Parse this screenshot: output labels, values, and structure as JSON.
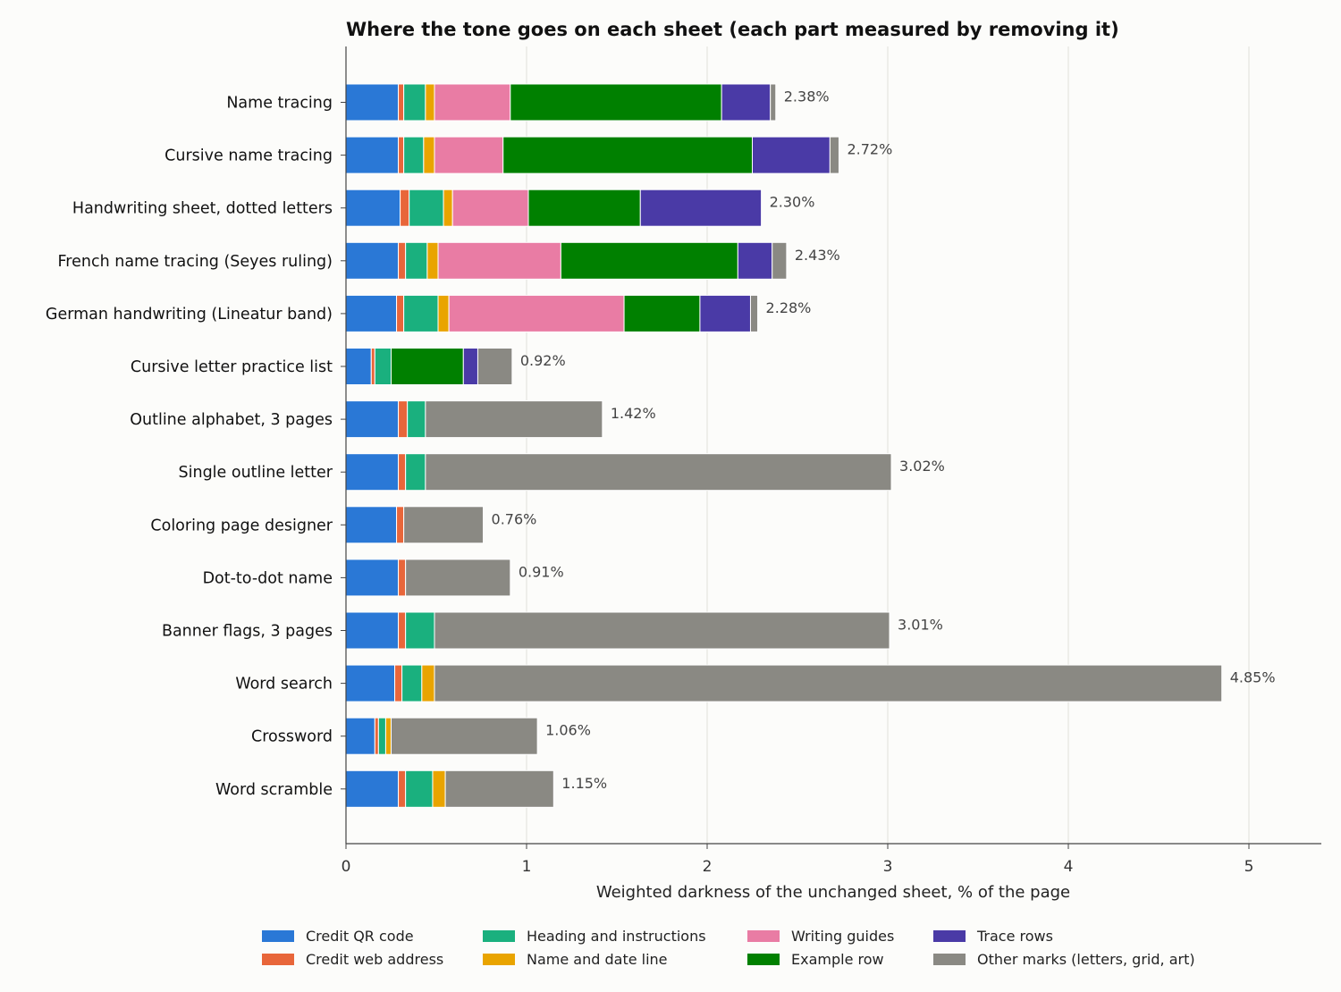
{
  "chart_data": {
    "type": "bar",
    "orientation": "horizontal",
    "stacked": true,
    "title": "Where the tone goes on each sheet (each part measured by removing it)",
    "xlabel": "Weighted darkness of the unchanged sheet, % of the page",
    "ylabel": "",
    "xlim": [
      0,
      5.4
    ],
    "xticks": [
      "0",
      "1",
      "2",
      "3",
      "4",
      "5"
    ],
    "grid": "vertical",
    "legend_position": "bottom",
    "categories": [
      "Name tracing",
      "Cursive name tracing",
      "Handwriting sheet, dotted letters",
      "French name tracing (Seyes ruling)",
      "German handwriting (Lineatur band)",
      "Cursive letter practice list",
      "Outline alphabet, 3 pages",
      "Single outline letter",
      "Coloring page designer",
      "Dot-to-dot name",
      "Banner flags, 3 pages",
      "Word search",
      "Crossword",
      "Word scramble"
    ],
    "totals": [
      "2.38%",
      "2.72%",
      "2.30%",
      "2.43%",
      "2.28%",
      "0.92%",
      "1.42%",
      "3.02%",
      "0.76%",
      "0.91%",
      "3.01%",
      "4.85%",
      "1.06%",
      "1.15%"
    ],
    "series": [
      {
        "name": "Credit QR code",
        "color": "#2a78d6",
        "values": [
          0.29,
          0.29,
          0.3,
          0.29,
          0.28,
          0.14,
          0.29,
          0.29,
          0.28,
          0.29,
          0.29,
          0.27,
          0.16,
          0.29
        ]
      },
      {
        "name": "Credit web address",
        "color": "#e8663a",
        "values": [
          0.03,
          0.03,
          0.05,
          0.04,
          0.04,
          0.02,
          0.05,
          0.04,
          0.04,
          0.04,
          0.04,
          0.04,
          0.02,
          0.04
        ]
      },
      {
        "name": "Heading and instructions",
        "color": "#1ab07e",
        "values": [
          0.12,
          0.11,
          0.19,
          0.12,
          0.19,
          0.09,
          0.1,
          0.11,
          0.0,
          0.0,
          0.16,
          0.11,
          0.04,
          0.15
        ]
      },
      {
        "name": "Name and date line",
        "color": "#e9a400",
        "values": [
          0.05,
          0.06,
          0.05,
          0.06,
          0.06,
          0.0,
          0.0,
          0.0,
          0.0,
          0.0,
          0.0,
          0.07,
          0.03,
          0.07
        ]
      },
      {
        "name": "Writing guides",
        "color": "#e97ca4",
        "values": [
          0.42,
          0.38,
          0.42,
          0.68,
          0.97,
          0.0,
          0.0,
          0.0,
          0.0,
          0.0,
          0.0,
          0.0,
          0.0,
          0.0
        ]
      },
      {
        "name": "Example row",
        "color": "#008000",
        "values": [
          1.17,
          1.38,
          0.62,
          0.98,
          0.42,
          0.4,
          0.0,
          0.0,
          0.0,
          0.0,
          0.0,
          0.0,
          0.0,
          0.0
        ]
      },
      {
        "name": "Trace rows",
        "color": "#4a3aa6",
        "values": [
          0.27,
          0.43,
          0.67,
          0.19,
          0.28,
          0.08,
          0.0,
          0.0,
          0.0,
          0.0,
          0.0,
          0.0,
          0.0,
          0.0
        ]
      },
      {
        "name": "Other marks (letters, grid, art)",
        "color": "#8a8983",
        "values": [
          0.03,
          0.05,
          0.0,
          0.08,
          0.04,
          0.19,
          0.98,
          2.58,
          0.44,
          0.58,
          2.52,
          4.36,
          0.81,
          0.6
        ]
      }
    ]
  }
}
